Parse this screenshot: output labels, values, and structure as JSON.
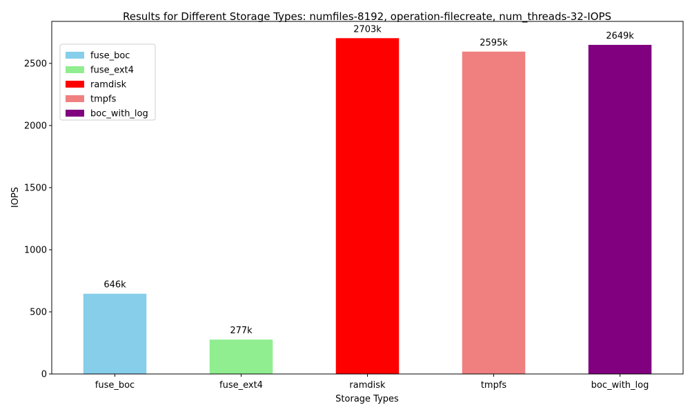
{
  "chart_data": {
    "type": "bar",
    "title": "Results for Different Storage Types: numfiles-8192, operation-filecreate, num_threads-32-IOPS",
    "xlabel": "Storage Types",
    "ylabel": "IOPS",
    "categories": [
      "fuse_boc",
      "fuse_ext4",
      "ramdisk",
      "tmpfs",
      "boc_with_log"
    ],
    "values": [
      646,
      277,
      2703,
      2595,
      2649
    ],
    "data_labels": [
      "646k",
      "277k",
      "2703k",
      "2595k",
      "2649k"
    ],
    "colors": [
      "#87ceeb",
      "#90ee90",
      "#ff0000",
      "#f08080",
      "#800080"
    ],
    "ylim": [
      0,
      2838
    ],
    "yticks": [
      0,
      500,
      1000,
      1500,
      2000,
      2500
    ],
    "grid": false,
    "legend": {
      "placement": "top-left",
      "entries": [
        "fuse_boc",
        "fuse_ext4",
        "ramdisk",
        "tmpfs",
        "boc_with_log"
      ]
    }
  }
}
